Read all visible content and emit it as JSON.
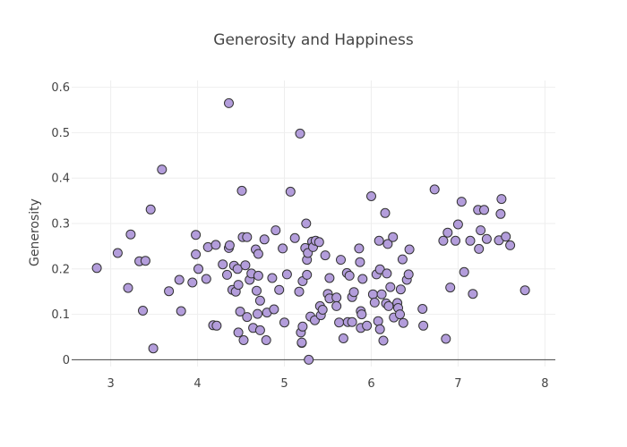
{
  "chart_data": {
    "type": "scatter",
    "title": "Generosity and Happiness",
    "xlabel": "",
    "ylabel": "Generosity",
    "xlim": [
      2.55,
      8.12
    ],
    "ylim": [
      -0.015,
      0.615
    ],
    "xticks": [
      3,
      4,
      5,
      6,
      7,
      8
    ],
    "yticks": [
      0,
      0.1,
      0.2,
      0.3,
      0.4,
      0.5,
      0.6
    ],
    "ytick_labels": [
      "0",
      "0.1",
      "0.2",
      "0.3",
      "0.4",
      "0.5",
      "0.6"
    ],
    "grid": true,
    "colors": {
      "marker_fill": "#b39ddb",
      "marker_edge": "#333333",
      "grid": "#eeeeee",
      "zero_line": "#444444"
    },
    "points": [
      [
        2.84,
        0.202
      ],
      [
        3.08,
        0.235
      ],
      [
        3.2,
        0.158
      ],
      [
        3.23,
        0.276
      ],
      [
        3.33,
        0.217
      ],
      [
        3.37,
        0.108
      ],
      [
        3.4,
        0.218
      ],
      [
        3.46,
        0.331
      ],
      [
        3.49,
        0.025
      ],
      [
        3.59,
        0.419
      ],
      [
        3.67,
        0.151
      ],
      [
        3.79,
        0.176
      ],
      [
        3.81,
        0.107
      ],
      [
        3.94,
        0.17
      ],
      [
        3.98,
        0.232
      ],
      [
        3.98,
        0.275
      ],
      [
        4.01,
        0.2
      ],
      [
        4.1,
        0.178
      ],
      [
        4.12,
        0.248
      ],
      [
        4.18,
        0.076
      ],
      [
        4.21,
        0.253
      ],
      [
        4.22,
        0.075
      ],
      [
        4.29,
        0.21
      ],
      [
        4.34,
        0.187
      ],
      [
        4.36,
        0.565
      ],
      [
        4.36,
        0.246
      ],
      [
        4.37,
        0.252
      ],
      [
        4.4,
        0.154
      ],
      [
        4.42,
        0.207
      ],
      [
        4.44,
        0.15
      ],
      [
        4.46,
        0.2
      ],
      [
        4.47,
        0.165
      ],
      [
        4.47,
        0.06
      ],
      [
        4.49,
        0.106
      ],
      [
        4.51,
        0.372
      ],
      [
        4.52,
        0.27
      ],
      [
        4.53,
        0.043
      ],
      [
        4.55,
        0.208
      ],
      [
        4.57,
        0.27
      ],
      [
        4.57,
        0.094
      ],
      [
        4.6,
        0.176
      ],
      [
        4.62,
        0.19
      ],
      [
        4.64,
        0.07
      ],
      [
        4.67,
        0.243
      ],
      [
        4.68,
        0.152
      ],
      [
        4.69,
        0.101
      ],
      [
        4.7,
        0.233
      ],
      [
        4.7,
        0.185
      ],
      [
        4.72,
        0.065
      ],
      [
        4.72,
        0.13
      ],
      [
        4.77,
        0.265
      ],
      [
        4.79,
        0.043
      ],
      [
        4.8,
        0.104
      ],
      [
        4.86,
        0.18
      ],
      [
        4.88,
        0.111
      ],
      [
        4.9,
        0.285
      ],
      [
        4.94,
        0.154
      ],
      [
        4.98,
        0.245
      ],
      [
        5.0,
        0.082
      ],
      [
        5.03,
        0.188
      ],
      [
        5.07,
        0.37
      ],
      [
        5.12,
        0.268
      ],
      [
        5.17,
        0.15
      ],
      [
        5.18,
        0.498
      ],
      [
        5.19,
        0.06
      ],
      [
        5.2,
        0.037
      ],
      [
        5.2,
        0.038
      ],
      [
        5.21,
        0.173
      ],
      [
        5.21,
        0.073
      ],
      [
        5.24,
        0.246
      ],
      [
        5.25,
        0.3
      ],
      [
        5.26,
        0.22
      ],
      [
        5.26,
        0.187
      ],
      [
        5.27,
        0.235
      ],
      [
        5.28,
        0.0
      ],
      [
        5.3,
        0.095
      ],
      [
        5.32,
        0.26
      ],
      [
        5.33,
        0.248
      ],
      [
        5.35,
        0.087
      ],
      [
        5.36,
        0.262
      ],
      [
        5.4,
        0.259
      ],
      [
        5.41,
        0.118
      ],
      [
        5.42,
        0.098
      ],
      [
        5.44,
        0.11
      ],
      [
        5.47,
        0.23
      ],
      [
        5.5,
        0.145
      ],
      [
        5.52,
        0.135
      ],
      [
        5.52,
        0.18
      ],
      [
        5.6,
        0.137
      ],
      [
        5.6,
        0.118
      ],
      [
        5.63,
        0.082
      ],
      [
        5.65,
        0.22
      ],
      [
        5.68,
        0.047
      ],
      [
        5.72,
        0.191
      ],
      [
        5.73,
        0.083
      ],
      [
        5.75,
        0.185
      ],
      [
        5.78,
        0.083
      ],
      [
        5.78,
        0.138
      ],
      [
        5.8,
        0.149
      ],
      [
        5.86,
        0.245
      ],
      [
        5.87,
        0.215
      ],
      [
        5.88,
        0.07
      ],
      [
        5.88,
        0.107
      ],
      [
        5.89,
        0.1
      ],
      [
        5.9,
        0.178
      ],
      [
        5.95,
        0.075
      ],
      [
        6.0,
        0.36
      ],
      [
        6.02,
        0.144
      ],
      [
        6.04,
        0.126
      ],
      [
        6.06,
        0.188
      ],
      [
        6.08,
        0.085
      ],
      [
        6.09,
        0.262
      ],
      [
        6.1,
        0.067
      ],
      [
        6.1,
        0.199
      ],
      [
        6.12,
        0.144
      ],
      [
        6.14,
        0.042
      ],
      [
        6.16,
        0.323
      ],
      [
        6.17,
        0.124
      ],
      [
        6.18,
        0.19
      ],
      [
        6.19,
        0.255
      ],
      [
        6.2,
        0.118
      ],
      [
        6.22,
        0.16
      ],
      [
        6.25,
        0.27
      ],
      [
        6.26,
        0.093
      ],
      [
        6.3,
        0.125
      ],
      [
        6.31,
        0.114
      ],
      [
        6.33,
        0.1
      ],
      [
        6.34,
        0.155
      ],
      [
        6.36,
        0.221
      ],
      [
        6.37,
        0.081
      ],
      [
        6.41,
        0.176
      ],
      [
        6.43,
        0.188
      ],
      [
        6.44,
        0.243
      ],
      [
        6.59,
        0.112
      ],
      [
        6.6,
        0.075
      ],
      [
        6.73,
        0.375
      ],
      [
        6.83,
        0.262
      ],
      [
        6.86,
        0.046
      ],
      [
        6.88,
        0.28
      ],
      [
        6.91,
        0.159
      ],
      [
        6.97,
        0.262
      ],
      [
        7.0,
        0.298
      ],
      [
        7.04,
        0.348
      ],
      [
        7.07,
        0.193
      ],
      [
        7.14,
        0.262
      ],
      [
        7.17,
        0.145
      ],
      [
        7.23,
        0.33
      ],
      [
        7.24,
        0.244
      ],
      [
        7.26,
        0.285
      ],
      [
        7.3,
        0.33
      ],
      [
        7.33,
        0.266
      ],
      [
        7.47,
        0.263
      ],
      [
        7.49,
        0.321
      ],
      [
        7.5,
        0.354
      ],
      [
        7.55,
        0.271
      ],
      [
        7.6,
        0.252
      ],
      [
        7.77,
        0.153
      ]
    ]
  }
}
